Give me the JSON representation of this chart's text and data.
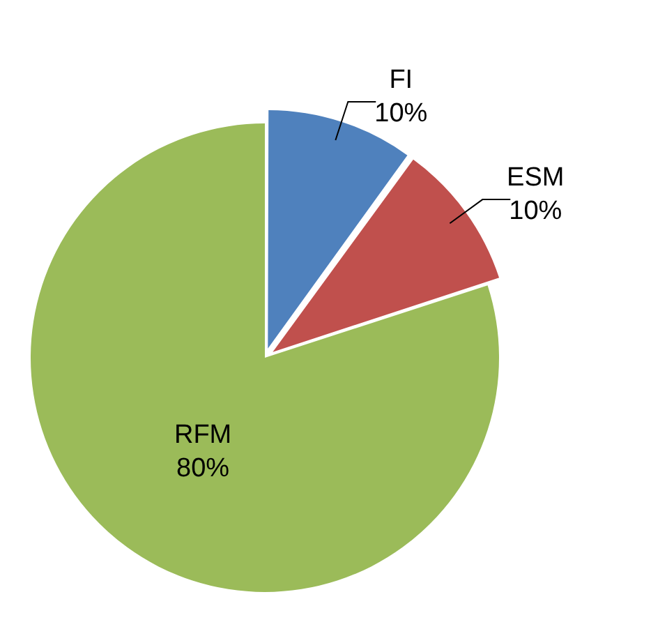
{
  "chart_data": {
    "type": "pie",
    "categories": [
      "FI",
      "ESM",
      "RFM"
    ],
    "values": [
      10,
      10,
      80
    ],
    "colors": [
      "#4f81bd",
      "#c0504d",
      "#9bbb59"
    ],
    "value_labels": [
      "10%",
      "10%",
      "80%"
    ],
    "legend": false
  }
}
